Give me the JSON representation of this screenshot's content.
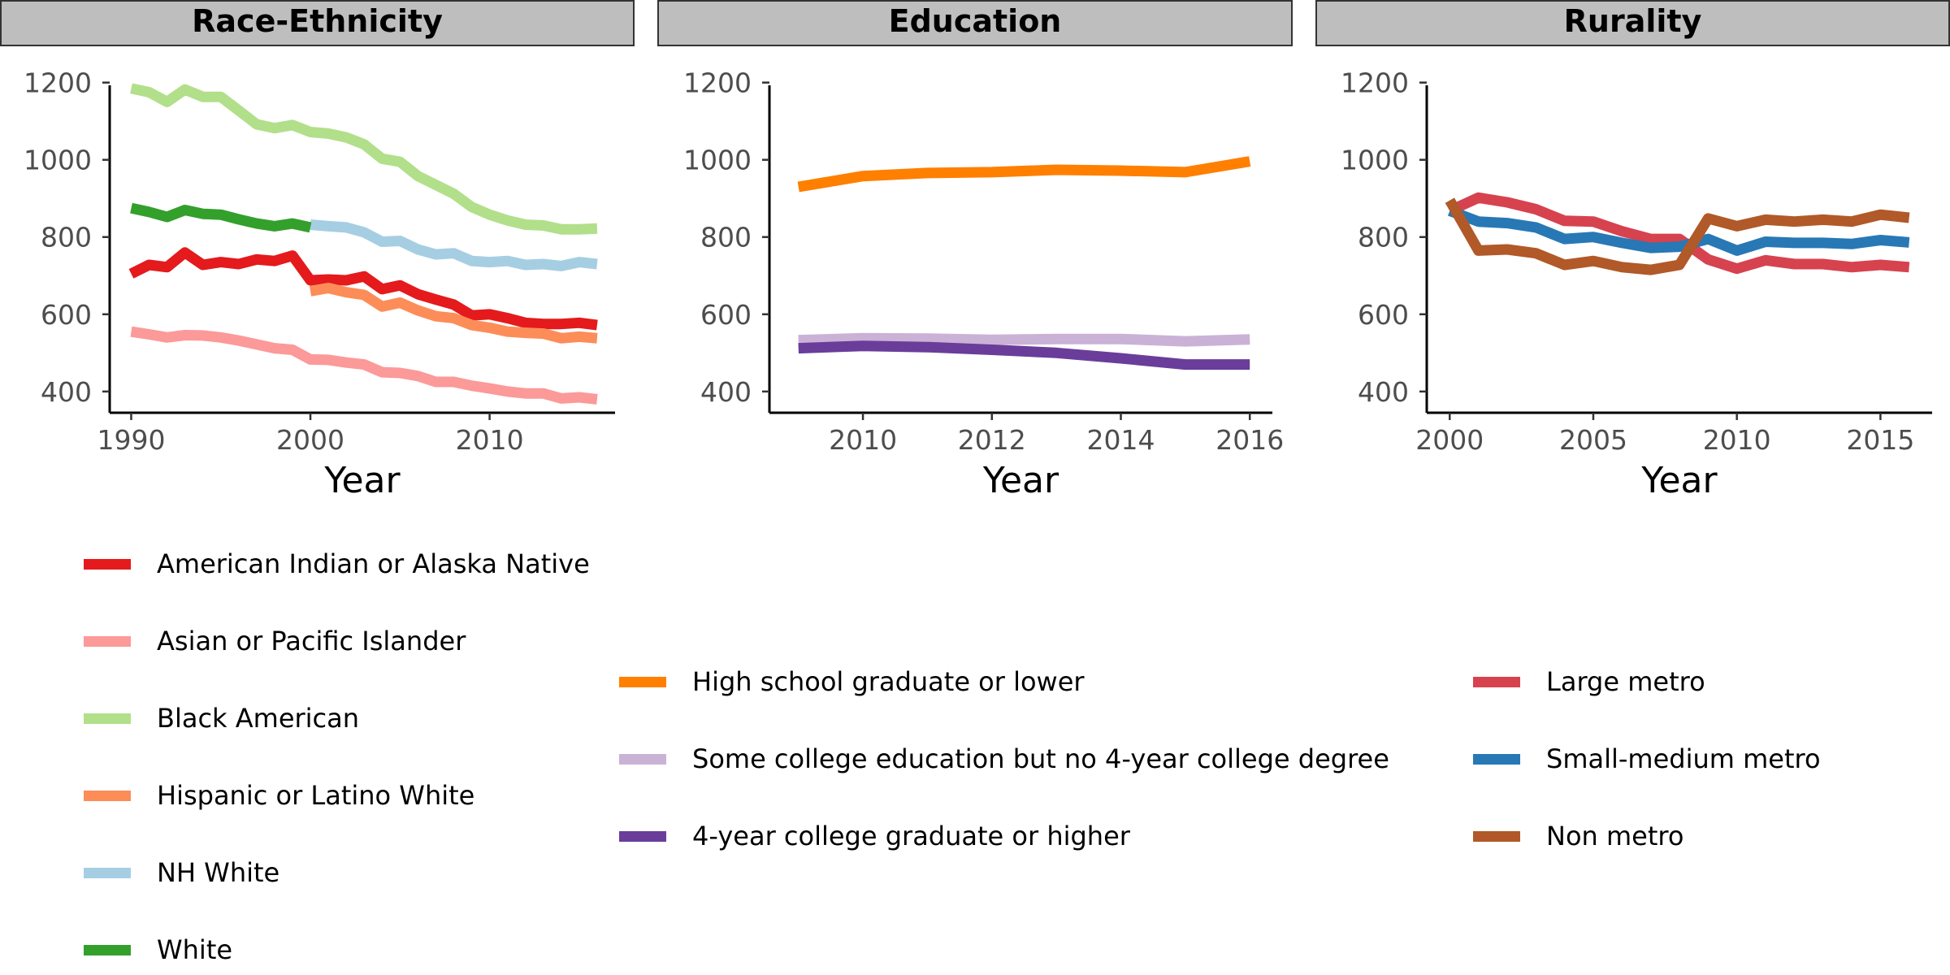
{
  "chart_data": [
    {
      "type": "line",
      "title": "Race-Ethnicity",
      "xlabel": "Year",
      "ylabel": "",
      "xlim": [
        1988.8,
        2017
      ],
      "ylim": [
        345,
        1235
      ],
      "xticks": [
        1990,
        2000,
        2010
      ],
      "yticks": [
        400,
        600,
        800,
        1000,
        1200
      ],
      "legend_position": "bottom",
      "series": [
        {
          "name": "American Indian or Alaska Native",
          "color": "#e41a1c",
          "x": [
            1990,
            1991,
            1992,
            1993,
            1994,
            1995,
            1996,
            1997,
            1998,
            1999,
            2000,
            2001,
            2002,
            2003,
            2004,
            2005,
            2006,
            2007,
            2008,
            2009,
            2010,
            2011,
            2012,
            2013,
            2014,
            2015,
            2016
          ],
          "y": [
            705,
            728,
            722,
            760,
            728,
            735,
            730,
            742,
            738,
            752,
            688,
            690,
            688,
            698,
            665,
            675,
            652,
            638,
            625,
            597,
            600,
            590,
            578,
            575,
            575,
            578,
            572
          ]
        },
        {
          "name": "Asian or Pacific Islander",
          "color": "#fb9a99",
          "x": [
            1990,
            1991,
            1992,
            1993,
            1994,
            1995,
            1996,
            1997,
            1998,
            1999,
            2000,
            2001,
            2002,
            2003,
            2004,
            2005,
            2006,
            2007,
            2008,
            2009,
            2010,
            2011,
            2012,
            2013,
            2014,
            2015,
            2016
          ],
          "y": [
            555,
            548,
            540,
            546,
            545,
            540,
            532,
            522,
            512,
            508,
            483,
            482,
            475,
            470,
            450,
            448,
            440,
            425,
            425,
            415,
            408,
            400,
            395,
            395,
            382,
            385,
            380
          ]
        },
        {
          "name": "Black American",
          "color": "#b2df8a",
          "x": [
            1990,
            1991,
            1992,
            1993,
            1994,
            1995,
            1996,
            1997,
            1998,
            1999,
            2000,
            2001,
            2002,
            2003,
            2004,
            2005,
            2006,
            2007,
            2008,
            2009,
            2010,
            2011,
            2012,
            2013,
            2014,
            2015,
            2016
          ],
          "y": [
            1185,
            1175,
            1150,
            1182,
            1163,
            1163,
            1128,
            1092,
            1082,
            1090,
            1072,
            1068,
            1058,
            1040,
            1003,
            995,
            958,
            935,
            912,
            878,
            858,
            843,
            832,
            830,
            820,
            820,
            822
          ]
        },
        {
          "name": "Hispanic or Latino White",
          "color": "#fc8d59",
          "x": [
            2000,
            2001,
            2002,
            2003,
            2004,
            2005,
            2006,
            2007,
            2008,
            2009,
            2010,
            2011,
            2012,
            2013,
            2014,
            2015,
            2016
          ],
          "y": [
            660,
            668,
            657,
            650,
            620,
            630,
            610,
            595,
            590,
            572,
            565,
            555,
            552,
            550,
            538,
            542,
            538
          ]
        },
        {
          "name": "NH White",
          "color": "#a6cee3",
          "x": [
            2000,
            2001,
            2002,
            2003,
            2004,
            2005,
            2006,
            2007,
            2008,
            2009,
            2010,
            2011,
            2012,
            2013,
            2014,
            2015,
            2016
          ],
          "y": [
            832,
            828,
            825,
            812,
            788,
            790,
            768,
            755,
            758,
            738,
            735,
            738,
            728,
            730,
            725,
            735,
            730
          ]
        },
        {
          "name": "White",
          "color": "#33a02c",
          "x": [
            1990,
            1991,
            1992,
            1993,
            1994,
            1995,
            1996,
            1997,
            1998,
            1999,
            2000
          ],
          "y": [
            875,
            865,
            852,
            870,
            860,
            858,
            846,
            835,
            828,
            835,
            825
          ]
        }
      ]
    },
    {
      "type": "line",
      "title": "Education",
      "xlabel": "Year",
      "ylabel": "",
      "xlim": [
        2008.55,
        2016.35
      ],
      "ylim": [
        345,
        1235
      ],
      "xticks": [
        2010,
        2012,
        2014,
        2016
      ],
      "yticks": [
        400,
        600,
        800,
        1000,
        1200
      ],
      "legend_position": "bottom",
      "series": [
        {
          "name": "High school graduate or lower",
          "color": "#ff7f00",
          "x": [
            2009,
            2010,
            2011,
            2012,
            2013,
            2014,
            2015,
            2016
          ],
          "y": [
            930,
            958,
            966,
            968,
            974,
            972,
            968,
            996
          ]
        },
        {
          "name": "Some college education but no 4-year college degree",
          "color": "#cab2d6",
          "x": [
            2009,
            2010,
            2011,
            2012,
            2013,
            2014,
            2015,
            2016
          ],
          "y": [
            533,
            538,
            537,
            534,
            536,
            536,
            530,
            535
          ]
        },
        {
          "name": "4-year college graduate or higher",
          "color": "#6a3d9a",
          "x": [
            2009,
            2010,
            2011,
            2012,
            2013,
            2014,
            2015,
            2016
          ],
          "y": [
            512,
            518,
            515,
            508,
            500,
            486,
            470,
            470
          ]
        }
      ]
    },
    {
      "type": "line",
      "title": "Rurality",
      "xlabel": "Year",
      "ylabel": "",
      "xlim": [
        1999.2,
        2016.8
      ],
      "ylim": [
        345,
        1235
      ],
      "xticks": [
        2000,
        2005,
        2010,
        2015
      ],
      "yticks": [
        400,
        600,
        800,
        1000,
        1200
      ],
      "legend_position": "bottom",
      "series": [
        {
          "name": "Large metro",
          "color": "#d7424f",
          "x": [
            2000,
            2001,
            2002,
            2003,
            2004,
            2005,
            2006,
            2007,
            2008,
            2009,
            2010,
            2011,
            2012,
            2013,
            2014,
            2015,
            2016
          ],
          "y": [
            868,
            902,
            890,
            872,
            842,
            840,
            815,
            795,
            795,
            742,
            718,
            740,
            730,
            730,
            722,
            728,
            722
          ]
        },
        {
          "name": "Small-medium metro",
          "color": "#2878b5",
          "x": [
            2000,
            2001,
            2002,
            2003,
            2004,
            2005,
            2006,
            2007,
            2008,
            2009,
            2010,
            2011,
            2012,
            2013,
            2014,
            2015,
            2016
          ],
          "y": [
            868,
            840,
            836,
            825,
            795,
            800,
            785,
            772,
            775,
            795,
            765,
            788,
            785,
            785,
            782,
            792,
            786
          ]
        },
        {
          "name": "Non metro",
          "color": "#b15928",
          "x": [
            2000,
            2001,
            2002,
            2003,
            2004,
            2005,
            2006,
            2007,
            2008,
            2009,
            2010,
            2011,
            2012,
            2013,
            2014,
            2015,
            2016
          ],
          "y": [
            895,
            765,
            768,
            758,
            728,
            738,
            722,
            715,
            728,
            848,
            828,
            845,
            840,
            845,
            840,
            858,
            850
          ]
        }
      ]
    }
  ]
}
